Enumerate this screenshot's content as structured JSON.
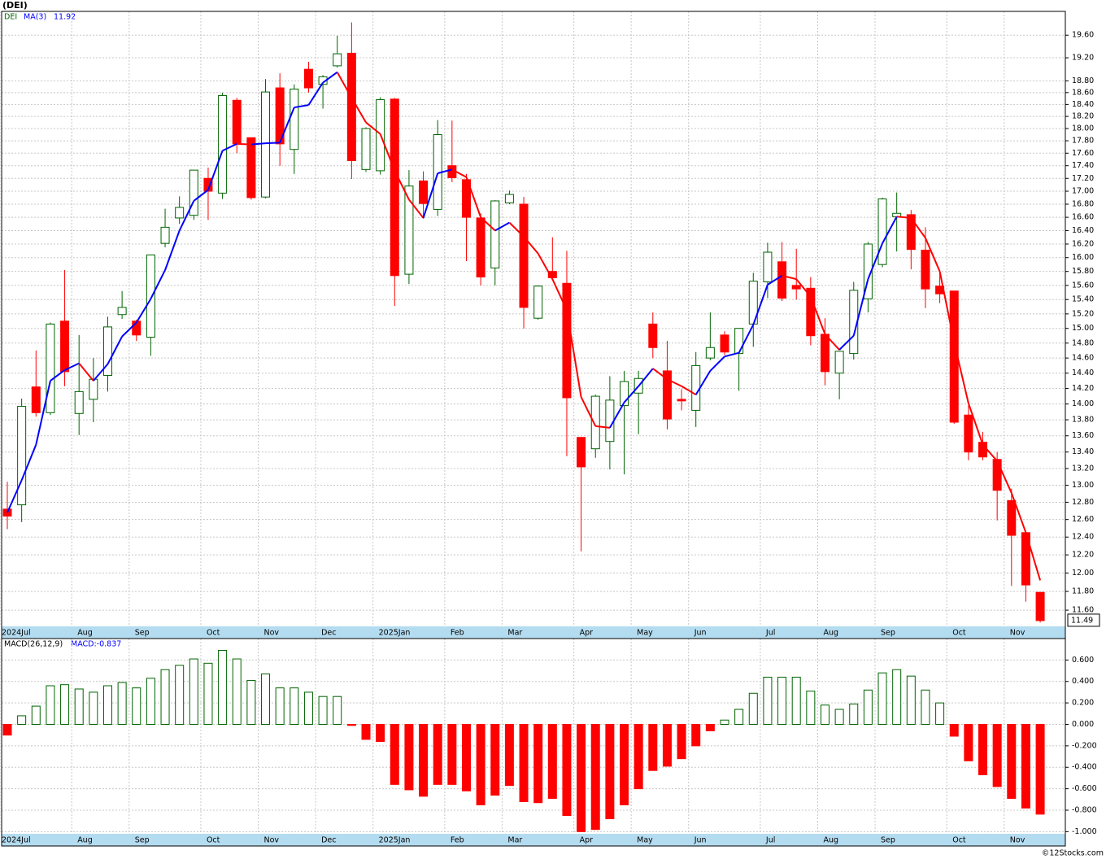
{
  "chart_data": [
    {
      "type": "candlestick",
      "title": "(DEI)",
      "ylog": true,
      "grid": true,
      "up_color": "#006400",
      "down_color": "#ff0000",
      "ma_up_color": "#0000ff",
      "ma_down_color": "#ff0000",
      "categories": [
        "2024Jul",
        null,
        null,
        null,
        null,
        "Aug",
        null,
        null,
        null,
        "Sep",
        null,
        null,
        null,
        null,
        "Oct",
        null,
        null,
        null,
        "Nov",
        null,
        null,
        null,
        "Dec",
        null,
        null,
        null,
        "2025Jan",
        null,
        null,
        null,
        null,
        "Feb",
        null,
        null,
        null,
        "Mar",
        null,
        null,
        null,
        null,
        "Apr",
        null,
        null,
        null,
        "May",
        null,
        null,
        null,
        "Jun",
        null,
        null,
        null,
        null,
        "Jul",
        null,
        null,
        null,
        "Aug",
        null,
        null,
        null,
        "Sep",
        null,
        null,
        null,
        null,
        "Oct",
        null,
        null,
        null,
        "Nov",
        null,
        null
      ],
      "series": [
        {
          "name": "DEI",
          "open": [
            12.72,
            12.77,
            14.22,
            13.89,
            15.1,
            13.88,
            14.06,
            14.37,
            15.19,
            15.1,
            14.88,
            16.21,
            16.59,
            16.63,
            17.2,
            16.97,
            18.47,
            17.85,
            16.91,
            18.68,
            17.66,
            19.0,
            18.74,
            19.06,
            19.28,
            17.34,
            17.32,
            18.49,
            15.76,
            17.16,
            16.72,
            17.4,
            17.18,
            16.59,
            15.85,
            16.82,
            16.8,
            15.14,
            15.8,
            15.63,
            13.58,
            13.44,
            13.53,
            13.98,
            14.14,
            15.06,
            14.43,
            14.06,
            13.92,
            14.6,
            14.91,
            14.66,
            15.06,
            15.65,
            15.94,
            15.6,
            15.56,
            14.92,
            14.4,
            14.66,
            15.41,
            15.9,
            16.61,
            16.64,
            16.11,
            15.59,
            15.52,
            13.86,
            13.52,
            13.31,
            12.82,
            12.45,
            11.79
          ],
          "high": [
            13.04,
            14.07,
            14.7,
            15.08,
            15.82,
            14.91,
            14.6,
            15.16,
            15.52,
            15.12,
            16.04,
            16.73,
            16.92,
            17.33,
            17.37,
            18.6,
            18.51,
            17.85,
            18.83,
            18.93,
            18.74,
            19.13,
            18.9,
            19.59,
            19.83,
            18.02,
            18.52,
            18.51,
            17.33,
            17.31,
            18.14,
            18.13,
            17.27,
            16.66,
            16.86,
            17.01,
            16.91,
            15.6,
            16.3,
            16.1,
            13.58,
            14.12,
            14.36,
            14.43,
            14.43,
            15.22,
            14.83,
            14.19,
            14.68,
            15.22,
            14.96,
            15.0,
            15.78,
            16.22,
            16.23,
            16.13,
            15.72,
            15.14,
            14.69,
            15.65,
            16.23,
            16.9,
            16.98,
            16.71,
            16.45,
            15.8,
            15.52,
            13.98,
            13.65,
            13.4,
            12.96,
            12.45,
            11.79
          ],
          "low": [
            12.49,
            12.57,
            13.84,
            13.86,
            14.23,
            13.61,
            13.77,
            14.16,
            15.13,
            14.83,
            14.63,
            16.15,
            16.5,
            16.56,
            16.56,
            16.88,
            17.6,
            16.87,
            16.89,
            17.4,
            17.27,
            18.6,
            18.33,
            19.03,
            17.19,
            17.3,
            17.26,
            15.31,
            15.62,
            16.58,
            16.62,
            17.14,
            15.95,
            15.6,
            15.6,
            16.8,
            15.0,
            15.12,
            15.68,
            13.35,
            12.24,
            13.33,
            13.19,
            13.13,
            13.62,
            14.6,
            13.68,
            13.92,
            13.71,
            14.57,
            14.64,
            14.17,
            14.75,
            15.42,
            15.38,
            15.4,
            14.77,
            14.24,
            14.06,
            14.58,
            15.22,
            15.86,
            16.09,
            15.83,
            15.28,
            15.35,
            13.75,
            13.3,
            13.3,
            12.59,
            11.86,
            11.69,
            11.47
          ],
          "close": [
            12.64,
            13.97,
            13.89,
            15.06,
            14.42,
            14.16,
            14.32,
            15.02,
            15.29,
            14.91,
            16.04,
            16.45,
            16.75,
            17.33,
            17.0,
            18.55,
            17.75,
            16.9,
            18.61,
            17.75,
            18.66,
            18.68,
            18.87,
            19.27,
            17.48,
            18.0,
            18.48,
            15.74,
            17.08,
            16.81,
            17.9,
            17.21,
            16.6,
            15.72,
            16.85,
            16.95,
            15.29,
            15.59,
            15.71,
            14.08,
            13.22,
            14.1,
            14.05,
            14.29,
            14.33,
            14.74,
            13.81,
            14.04,
            14.5,
            14.74,
            14.68,
            15.0,
            15.66,
            16.08,
            15.42,
            15.55,
            14.9,
            14.42,
            14.69,
            15.53,
            16.2,
            16.88,
            16.66,
            16.12,
            15.55,
            15.48,
            13.77,
            13.4,
            13.34,
            12.94,
            12.42,
            11.87,
            11.49
          ]
        }
      ],
      "ma": {
        "name": "MA(3)",
        "values": [
          12.68,
          13.06,
          13.49,
          14.3,
          14.44,
          14.53,
          14.3,
          14.52,
          14.89,
          15.08,
          15.41,
          15.82,
          16.4,
          16.85,
          17.02,
          17.64,
          17.75,
          17.74,
          17.76,
          17.77,
          18.35,
          18.39,
          18.77,
          18.95,
          18.51,
          18.1,
          17.91,
          17.32,
          16.87,
          16.59,
          17.28,
          17.34,
          17.22,
          16.6,
          16.4,
          16.52,
          16.31,
          16.06,
          15.69,
          15.25,
          14.09,
          13.72,
          13.7,
          14.02,
          14.23,
          14.46,
          14.32,
          14.23,
          14.12,
          14.43,
          14.62,
          14.67,
          15.05,
          15.61,
          15.74,
          15.69,
          15.44,
          14.92,
          14.71,
          14.9,
          15.69,
          16.21,
          16.61,
          16.59,
          16.29,
          15.8,
          14.81,
          14.01,
          13.49,
          13.29,
          12.91,
          12.45,
          11.92
        ]
      },
      "ylim": [
        11.43,
        20.03
      ],
      "yticks": [
        {
          "value": 19.6,
          "label": "19.60"
        },
        {
          "value": 19.2,
          "label": "19.20"
        },
        {
          "value": 18.8,
          "label": "18.80"
        },
        {
          "value": 18.6,
          "label": "18.60"
        },
        {
          "value": 18.4,
          "label": "18.40"
        },
        {
          "value": 18.2,
          "label": "18.20"
        },
        {
          "value": 18.0,
          "label": "18.00"
        },
        {
          "value": 17.8,
          "label": "17.80"
        },
        {
          "value": 17.6,
          "label": "17.60"
        },
        {
          "value": 17.4,
          "label": "17.40"
        },
        {
          "value": 17.2,
          "label": "17.20"
        },
        {
          "value": 17.0,
          "label": "17.00"
        },
        {
          "value": 16.8,
          "label": "16.80"
        },
        {
          "value": 16.6,
          "label": "16.60"
        },
        {
          "value": 16.4,
          "label": "16.40"
        },
        {
          "value": 16.2,
          "label": "16.20"
        },
        {
          "value": 16.0,
          "label": "16.00"
        },
        {
          "value": 15.8,
          "label": "15.80"
        },
        {
          "value": 15.6,
          "label": "15.60"
        },
        {
          "value": 15.4,
          "label": "15.40"
        },
        {
          "value": 15.2,
          "label": "15.20"
        },
        {
          "value": 15.0,
          "label": "15.00"
        },
        {
          "value": 14.8,
          "label": "14.80"
        },
        {
          "value": 14.6,
          "label": "14.60"
        },
        {
          "value": 14.4,
          "label": "14.40"
        },
        {
          "value": 14.2,
          "label": "14.20"
        },
        {
          "value": 14.0,
          "label": "14.00"
        },
        {
          "value": 13.8,
          "label": "13.80"
        },
        {
          "value": 13.6,
          "label": "13.60"
        },
        {
          "value": 13.4,
          "label": "13.40"
        },
        {
          "value": 13.2,
          "label": "13.20"
        },
        {
          "value": 13.0,
          "label": "13.00"
        },
        {
          "value": 12.8,
          "label": "12.80"
        },
        {
          "value": 12.6,
          "label": "12.60"
        },
        {
          "value": 12.4,
          "label": "12.40"
        },
        {
          "value": 12.2,
          "label": "12.20"
        },
        {
          "value": 12.0,
          "label": "12.00"
        },
        {
          "value": 11.8,
          "label": "11.80"
        },
        {
          "value": 11.6,
          "label": "11.60"
        }
      ],
      "credit": "©12Stocks.com"
    },
    {
      "type": "bar",
      "title": "MACD(26,12,9)",
      "macd_label": "MACD:-0.837",
      "grid": true,
      "up_color": "#006400",
      "down_color": "#ff0000",
      "categories": [
        "2024Jul",
        null,
        null,
        null,
        null,
        "Aug",
        null,
        null,
        null,
        "Sep",
        null,
        null,
        null,
        null,
        "Oct",
        null,
        null,
        null,
        "Nov",
        null,
        null,
        null,
        "Dec",
        null,
        null,
        null,
        "2025Jan",
        null,
        null,
        null,
        null,
        "Feb",
        null,
        null,
        null,
        "Mar",
        null,
        null,
        null,
        null,
        "Apr",
        null,
        null,
        null,
        "May",
        null,
        null,
        null,
        "Jun",
        null,
        null,
        null,
        null,
        "Jul",
        null,
        null,
        null,
        "Aug",
        null,
        null,
        null,
        "Sep",
        null,
        null,
        null,
        null,
        "Oct",
        null,
        null,
        null,
        "Nov",
        null,
        null
      ],
      "values": [
        -0.1,
        0.08,
        0.17,
        0.36,
        0.37,
        0.33,
        0.3,
        0.36,
        0.39,
        0.34,
        0.43,
        0.51,
        0.55,
        0.61,
        0.57,
        0.69,
        0.61,
        0.41,
        0.47,
        0.34,
        0.34,
        0.3,
        0.26,
        0.26,
        -0.01,
        -0.14,
        -0.16,
        -0.56,
        -0.61,
        -0.67,
        -0.56,
        -0.56,
        -0.62,
        -0.75,
        -0.66,
        -0.57,
        -0.72,
        -0.73,
        -0.69,
        -0.85,
        -1.0,
        -0.98,
        -0.88,
        -0.75,
        -0.6,
        -0.43,
        -0.39,
        -0.32,
        -0.2,
        -0.06,
        0.04,
        0.14,
        0.29,
        0.44,
        0.44,
        0.44,
        0.31,
        0.18,
        0.14,
        0.19,
        0.32,
        0.48,
        0.51,
        0.45,
        0.32,
        0.2,
        -0.11,
        -0.34,
        -0.47,
        -0.58,
        -0.69,
        -0.78,
        -0.837
      ],
      "ylim": [
        -1.02,
        0.8
      ],
      "yticks": [
        {
          "value": 0.6,
          "label": "0.600"
        },
        {
          "value": 0.4,
          "label": "0.400"
        },
        {
          "value": 0.2,
          "label": "0.200"
        },
        {
          "value": 0,
          "label": "0.000"
        },
        {
          "value": -0.2,
          "label": "-0.200"
        },
        {
          "value": -0.4,
          "label": "-0.400"
        },
        {
          "value": -0.6,
          "label": "-0.600"
        },
        {
          "value": -0.8,
          "label": "-0.800"
        },
        {
          "value": -1.0,
          "label": "-1.000"
        }
      ]
    }
  ]
}
